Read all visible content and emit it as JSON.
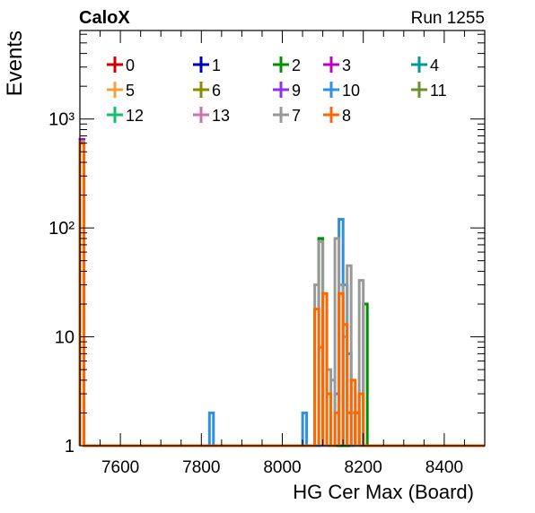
{
  "header": {
    "experiment": "CaloX",
    "run": "Run 1255"
  },
  "chart_data": {
    "type": "histogram",
    "title": "",
    "xlabel": "HG Cer Max (Board)",
    "ylabel": "Events",
    "xlim": [
      7500,
      8500
    ],
    "ylim": [
      1,
      6500
    ],
    "log_y": true,
    "bin_width": 10,
    "grid": false,
    "legend_position": "top",
    "x_ticks": [
      7600,
      7800,
      8000,
      8200,
      8400
    ],
    "y_ticks": [
      {
        "value": 1,
        "label": "1"
      },
      {
        "value": 10,
        "label": "10"
      },
      {
        "value": 100,
        "label": "10²"
      },
      {
        "value": 1000,
        "label": "10³"
      }
    ],
    "legend": [
      {
        "label": "0",
        "color": "#d00000"
      },
      {
        "label": "1",
        "color": "#0000b0"
      },
      {
        "label": "2",
        "color": "#009000"
      },
      {
        "label": "3",
        "color": "#c000c0"
      },
      {
        "label": "4",
        "color": "#009a9a"
      },
      {
        "label": "5",
        "color": "#f5a040"
      },
      {
        "label": "6",
        "color": "#8a8a00"
      },
      {
        "label": "9",
        "color": "#9030f0"
      },
      {
        "label": "10",
        "color": "#3090e0"
      },
      {
        "label": "11",
        "color": "#6a9030"
      },
      {
        "label": "12",
        "color": "#10c070"
      },
      {
        "label": "13",
        "color": "#d070a0"
      },
      {
        "label": "7",
        "color": "#999999"
      },
      {
        "label": "8",
        "color": "#ff6600"
      }
    ],
    "series": [
      {
        "label": "0",
        "bins": [
          [
            7500,
            620
          ]
        ]
      },
      {
        "label": "1",
        "bins": [
          [
            7500,
            620
          ]
        ]
      },
      {
        "label": "3",
        "bins": [
          [
            7500,
            650
          ]
        ]
      },
      {
        "label": "4",
        "bins": [
          [
            7500,
            620
          ]
        ]
      },
      {
        "label": "5",
        "bins": [
          [
            7500,
            620
          ]
        ]
      },
      {
        "label": "6",
        "bins": [
          [
            7500,
            620
          ]
        ]
      },
      {
        "label": "9",
        "bins": [
          [
            7500,
            620
          ]
        ]
      },
      {
        "label": "11",
        "bins": [
          [
            7500,
            620
          ]
        ]
      },
      {
        "label": "12",
        "bins": [
          [
            7500,
            620
          ]
        ]
      },
      {
        "label": "13",
        "bins": [
          [
            7500,
            620
          ]
        ]
      },
      {
        "label": "2",
        "bins": [
          [
            7500,
            620
          ],
          [
            8090,
            80
          ],
          [
            8180,
            2
          ],
          [
            8200,
            20
          ]
        ]
      },
      {
        "label": "10",
        "bins": [
          [
            7500,
            620
          ],
          [
            7820,
            2
          ],
          [
            8050,
            2
          ],
          [
            8130,
            3
          ],
          [
            8140,
            120
          ],
          [
            8150,
            30
          ],
          [
            8160,
            7
          ]
        ]
      },
      {
        "label": "7",
        "bins": [
          [
            7500,
            620
          ],
          [
            8080,
            30
          ],
          [
            8090,
            75
          ],
          [
            8110,
            5
          ],
          [
            8120,
            4
          ],
          [
            8130,
            80
          ],
          [
            8140,
            30
          ],
          [
            8150,
            10
          ],
          [
            8160,
            45
          ],
          [
            8170,
            2
          ],
          [
            8180,
            1
          ],
          [
            8190,
            33
          ]
        ]
      },
      {
        "label": "8",
        "bins": [
          [
            7500,
            600
          ],
          [
            8080,
            18
          ],
          [
            8090,
            8
          ],
          [
            8100,
            25
          ],
          [
            8110,
            3
          ],
          [
            8120,
            1
          ],
          [
            8130,
            2
          ],
          [
            8140,
            25
          ],
          [
            8150,
            13
          ],
          [
            8160,
            2
          ],
          [
            8170,
            4
          ],
          [
            8180,
            2
          ],
          [
            8190,
            3
          ]
        ]
      }
    ]
  }
}
